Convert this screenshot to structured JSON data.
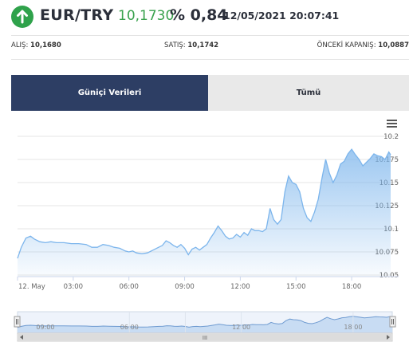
{
  "header": {
    "pair": "EUR/TRY",
    "price": "10,1730",
    "change": "% 0,84",
    "timestamp": "12/05/2021 20:07:41",
    "direction_icon": "arrow-up-icon",
    "up_color": "#2fa24b"
  },
  "quotes": {
    "alis_label": "ALIŞ:",
    "alis_value": "10,1680",
    "satis_label": "SATIŞ:",
    "satis_value": "10,1742",
    "onceki_label": "ÖNCEKİ KAPANIŞ:",
    "onceki_value": "10,0887"
  },
  "tabs": [
    {
      "label": "Güniçi Verileri",
      "active": true
    },
    {
      "label": "Tümü",
      "active": false
    }
  ],
  "chart_menu_icon": "hamburger-menu-icon",
  "chart_data": {
    "type": "area",
    "x_tick_labels": [
      "12. May",
      "03:00",
      "06:00",
      "09:00",
      "12:00",
      "15:00",
      "18:00"
    ],
    "y_tick_labels": [
      "10.05",
      "10.075",
      "10.1",
      "10.125",
      "10.15",
      "10.175",
      "10.2"
    ],
    "ylim": [
      10.05,
      10.2
    ],
    "xlim_hours": [
      0,
      20.1
    ],
    "line_color": "#7cb5ec",
    "points": [
      [
        0.0,
        10.068
      ],
      [
        0.2,
        10.08
      ],
      [
        0.45,
        10.09
      ],
      [
        0.7,
        10.092
      ],
      [
        0.9,
        10.089
      ],
      [
        1.2,
        10.086
      ],
      [
        1.5,
        10.085
      ],
      [
        1.8,
        10.086
      ],
      [
        2.1,
        10.085
      ],
      [
        2.5,
        10.085
      ],
      [
        2.9,
        10.084
      ],
      [
        3.3,
        10.084
      ],
      [
        3.7,
        10.083
      ],
      [
        4.0,
        10.08
      ],
      [
        4.3,
        10.08
      ],
      [
        4.6,
        10.083
      ],
      [
        4.9,
        10.082
      ],
      [
        5.2,
        10.08
      ],
      [
        5.5,
        10.079
      ],
      [
        5.8,
        10.076
      ],
      [
        6.0,
        10.075
      ],
      [
        6.2,
        10.076
      ],
      [
        6.4,
        10.074
      ],
      [
        6.7,
        10.073
      ],
      [
        7.0,
        10.074
      ],
      [
        7.3,
        10.077
      ],
      [
        7.6,
        10.08
      ],
      [
        7.8,
        10.082
      ],
      [
        8.0,
        10.087
      ],
      [
        8.2,
        10.085
      ],
      [
        8.4,
        10.082
      ],
      [
        8.6,
        10.08
      ],
      [
        8.8,
        10.083
      ],
      [
        9.0,
        10.079
      ],
      [
        9.2,
        10.072
      ],
      [
        9.4,
        10.078
      ],
      [
        9.6,
        10.08
      ],
      [
        9.8,
        10.077
      ],
      [
        10.0,
        10.08
      ],
      [
        10.2,
        10.083
      ],
      [
        10.4,
        10.09
      ],
      [
        10.6,
        10.096
      ],
      [
        10.8,
        10.103
      ],
      [
        11.0,
        10.098
      ],
      [
        11.2,
        10.092
      ],
      [
        11.4,
        10.089
      ],
      [
        11.6,
        10.09
      ],
      [
        11.8,
        10.094
      ],
      [
        12.0,
        10.091
      ],
      [
        12.2,
        10.096
      ],
      [
        12.4,
        10.093
      ],
      [
        12.6,
        10.1
      ],
      [
        12.8,
        10.098
      ],
      [
        13.0,
        10.098
      ],
      [
        13.2,
        10.097
      ],
      [
        13.4,
        10.1
      ],
      [
        13.6,
        10.122
      ],
      [
        13.8,
        10.11
      ],
      [
        14.0,
        10.105
      ],
      [
        14.2,
        10.11
      ],
      [
        14.4,
        10.14
      ],
      [
        14.6,
        10.157
      ],
      [
        14.8,
        10.15
      ],
      [
        15.0,
        10.148
      ],
      [
        15.2,
        10.14
      ],
      [
        15.4,
        10.122
      ],
      [
        15.6,
        10.112
      ],
      [
        15.8,
        10.108
      ],
      [
        16.0,
        10.118
      ],
      [
        16.2,
        10.132
      ],
      [
        16.4,
        10.155
      ],
      [
        16.6,
        10.175
      ],
      [
        16.8,
        10.16
      ],
      [
        17.0,
        10.15
      ],
      [
        17.2,
        10.158
      ],
      [
        17.4,
        10.17
      ],
      [
        17.6,
        10.173
      ],
      [
        17.8,
        10.181
      ],
      [
        18.0,
        10.186
      ],
      [
        18.2,
        10.18
      ],
      [
        18.4,
        10.175
      ],
      [
        18.6,
        10.168
      ],
      [
        18.8,
        10.172
      ],
      [
        19.0,
        10.176
      ],
      [
        19.2,
        10.181
      ],
      [
        19.4,
        10.179
      ],
      [
        19.6,
        10.178
      ],
      [
        19.8,
        10.175
      ],
      [
        20.0,
        10.183
      ],
      [
        20.1,
        10.18
      ]
    ],
    "navigator_tick_labels": [
      "09:00",
      "06:00",
      "12:00",
      "18:00"
    ],
    "navigator_handle_label": "III"
  }
}
